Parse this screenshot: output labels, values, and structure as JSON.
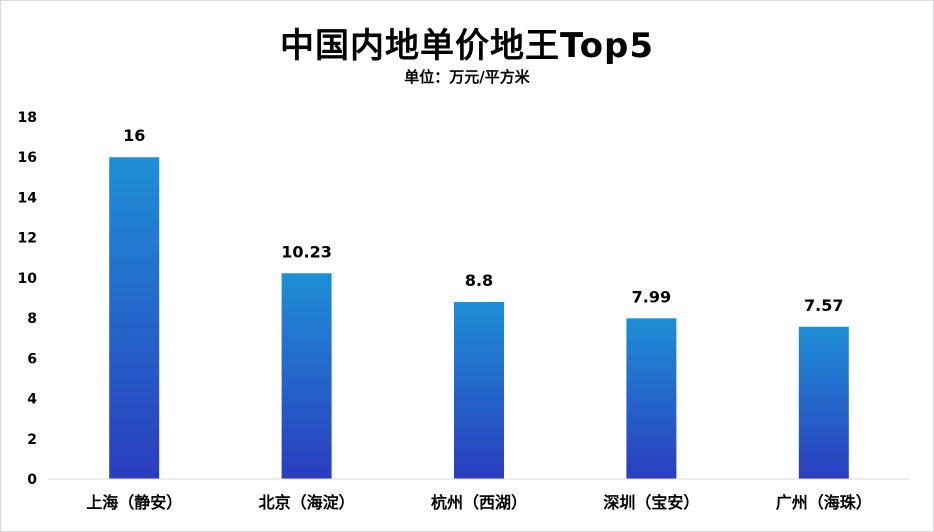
{
  "chart_data": {
    "type": "bar",
    "title": "中国内地单价地王Top5",
    "subtitle": "单位：万元/平方米",
    "categories": [
      "上海（静安）",
      "北京（海淀）",
      "杭州（西湖）",
      "深圳（宝安）",
      "广州（海珠）"
    ],
    "values": [
      16,
      10.23,
      8.8,
      7.99,
      7.57
    ],
    "data_labels": [
      "16",
      "10.23",
      "8.8",
      "7.99",
      "7.57"
    ],
    "ylim": [
      0,
      18
    ],
    "yticks": [
      0,
      2,
      4,
      6,
      8,
      10,
      12,
      14,
      16,
      18
    ],
    "grid": false,
    "colors": {
      "bar_top": "#1e8fd6",
      "bar_bottom": "#2a3dbf"
    }
  }
}
